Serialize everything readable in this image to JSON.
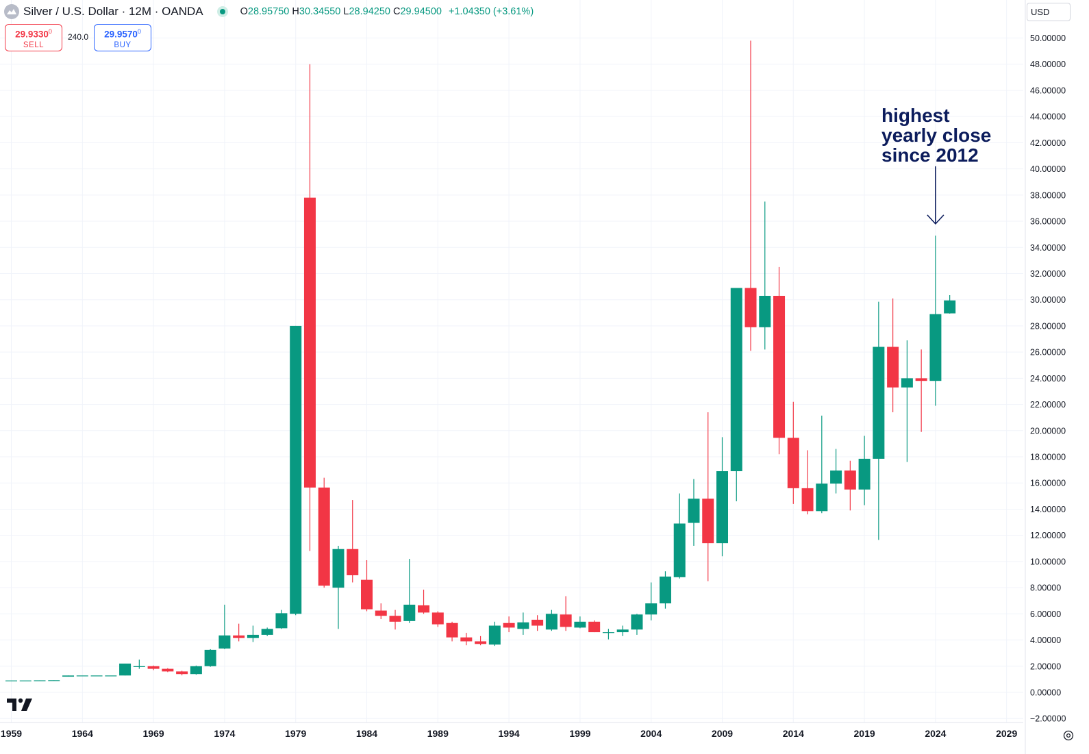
{
  "header": {
    "title": "Silver / U.S. Dollar · 12M · OANDA",
    "ohlc": {
      "open_label": "O",
      "open": "28.95750",
      "high_label": "H",
      "high": "30.34550",
      "low_label": "L",
      "low": "28.94250",
      "close_label": "C",
      "close": "29.94500",
      "change": "+1.04350 (+3.61%)"
    },
    "status_color": "#089981"
  },
  "trade": {
    "sell_price": "29.9330",
    "sell_price_sup": "0",
    "sell_label": "SELL",
    "spread": "240.0",
    "buy_price": "29.9570",
    "buy_price_sup": "0",
    "buy_label": "BUY"
  },
  "currency": "USD",
  "annotation": {
    "lines": [
      "highest",
      "yearly close",
      "since 2012"
    ],
    "color": "#0c1c5c"
  },
  "icons": {
    "logo": "tradingview-logo-icon",
    "settings": "settings-icon",
    "symbol": "silver-symbol-icon",
    "dropdown": "chevron-down-icon"
  },
  "chart_data": {
    "type": "candlestick",
    "colors": {
      "up": "#089981",
      "down": "#f23645",
      "grid": "#f0f3fa",
      "arrow": "#0c1c5c"
    },
    "x_ticks": [
      "1959",
      "1964",
      "1969",
      "1974",
      "1979",
      "1984",
      "1989",
      "1994",
      "1999",
      "2004",
      "2009",
      "2014",
      "2019",
      "2024",
      "2029"
    ],
    "y_ticks": [
      "50.00000",
      "48.00000",
      "46.00000",
      "44.00000",
      "42.00000",
      "40.00000",
      "38.00000",
      "36.00000",
      "34.00000",
      "32.00000",
      "30.00000",
      "28.00000",
      "26.00000",
      "24.00000",
      "22.00000",
      "20.00000",
      "18.00000",
      "16.00000",
      "14.00000",
      "12.00000",
      "10.00000",
      "8.00000",
      "6.00000",
      "4.00000",
      "2.00000",
      "0.00000",
      "−2.00000"
    ],
    "y_range": [
      -2,
      50
    ],
    "x_range": [
      1959,
      2029
    ],
    "grid": true,
    "annotation_arrow": {
      "x": 2024,
      "from": 40.2,
      "to": 35.8
    },
    "candles": [
      {
        "year": 1959,
        "o": 0.91,
        "h": 0.91,
        "l": 0.91,
        "c": 0.91
      },
      {
        "year": 1960,
        "o": 0.91,
        "h": 0.91,
        "l": 0.91,
        "c": 0.91
      },
      {
        "year": 1961,
        "o": 0.91,
        "h": 0.92,
        "l": 0.91,
        "c": 0.92
      },
      {
        "year": 1962,
        "o": 0.92,
        "h": 0.93,
        "l": 0.92,
        "c": 0.93
      },
      {
        "year": 1963,
        "o": 1.2,
        "h": 1.29,
        "l": 1.2,
        "c": 1.29
      },
      {
        "year": 1964,
        "o": 1.29,
        "h": 1.29,
        "l": 1.29,
        "c": 1.29
      },
      {
        "year": 1965,
        "o": 1.29,
        "h": 1.29,
        "l": 1.29,
        "c": 1.29
      },
      {
        "year": 1966,
        "o": 1.29,
        "h": 1.29,
        "l": 1.29,
        "c": 1.29
      },
      {
        "year": 1967,
        "o": 1.29,
        "h": 2.2,
        "l": 1.29,
        "c": 2.2
      },
      {
        "year": 1968,
        "o": 2.0,
        "h": 2.5,
        "l": 1.8,
        "c": 2.0
      },
      {
        "year": 1969,
        "o": 2.0,
        "h": 2.05,
        "l": 1.7,
        "c": 1.8
      },
      {
        "year": 1970,
        "o": 1.8,
        "h": 1.85,
        "l": 1.55,
        "c": 1.6
      },
      {
        "year": 1971,
        "o": 1.6,
        "h": 1.65,
        "l": 1.3,
        "c": 1.4
      },
      {
        "year": 1972,
        "o": 1.4,
        "h": 2.05,
        "l": 1.35,
        "c": 2.0
      },
      {
        "year": 1973,
        "o": 2.0,
        "h": 3.3,
        "l": 1.95,
        "c": 3.25
      },
      {
        "year": 1974,
        "o": 3.35,
        "h": 6.7,
        "l": 3.3,
        "c": 4.35
      },
      {
        "year": 1975,
        "o": 4.35,
        "h": 5.25,
        "l": 3.9,
        "c": 4.15
      },
      {
        "year": 1976,
        "o": 4.15,
        "h": 5.1,
        "l": 3.85,
        "c": 4.4
      },
      {
        "year": 1977,
        "o": 4.4,
        "h": 4.95,
        "l": 4.3,
        "c": 4.85
      },
      {
        "year": 1978,
        "o": 4.9,
        "h": 6.3,
        "l": 4.85,
        "c": 6.05
      },
      {
        "year": 1979,
        "o": 6.0,
        "h": 28.0,
        "l": 5.9,
        "c": 28.0
      },
      {
        "year": 1980,
        "o": 37.8,
        "h": 48.0,
        "l": 10.8,
        "c": 15.65
      },
      {
        "year": 1981,
        "o": 15.65,
        "h": 16.4,
        "l": 8.0,
        "c": 8.15
      },
      {
        "year": 1982,
        "o": 8.0,
        "h": 11.2,
        "l": 4.85,
        "c": 10.95
      },
      {
        "year": 1983,
        "o": 10.95,
        "h": 14.7,
        "l": 8.4,
        "c": 8.95
      },
      {
        "year": 1984,
        "o": 8.6,
        "h": 10.1,
        "l": 6.2,
        "c": 6.35
      },
      {
        "year": 1985,
        "o": 6.25,
        "h": 6.8,
        "l": 5.6,
        "c": 5.85
      },
      {
        "year": 1986,
        "o": 5.85,
        "h": 6.3,
        "l": 4.8,
        "c": 5.4
      },
      {
        "year": 1987,
        "o": 5.45,
        "h": 10.2,
        "l": 5.3,
        "c": 6.7
      },
      {
        "year": 1988,
        "o": 6.65,
        "h": 7.85,
        "l": 6.0,
        "c": 6.1
      },
      {
        "year": 1989,
        "o": 6.1,
        "h": 6.2,
        "l": 5.0,
        "c": 5.2
      },
      {
        "year": 1990,
        "o": 5.3,
        "h": 5.4,
        "l": 3.9,
        "c": 4.2
      },
      {
        "year": 1991,
        "o": 4.2,
        "h": 4.55,
        "l": 3.6,
        "c": 3.9
      },
      {
        "year": 1992,
        "o": 3.9,
        "h": 4.3,
        "l": 3.6,
        "c": 3.7
      },
      {
        "year": 1993,
        "o": 3.65,
        "h": 5.4,
        "l": 3.55,
        "c": 5.1
      },
      {
        "year": 1994,
        "o": 5.3,
        "h": 5.8,
        "l": 4.6,
        "c": 4.95
      },
      {
        "year": 1995,
        "o": 4.85,
        "h": 6.1,
        "l": 4.4,
        "c": 5.35
      },
      {
        "year": 1996,
        "o": 5.55,
        "h": 5.9,
        "l": 4.7,
        "c": 5.1
      },
      {
        "year": 1997,
        "o": 4.8,
        "h": 6.3,
        "l": 4.7,
        "c": 6.0
      },
      {
        "year": 1998,
        "o": 5.95,
        "h": 7.35,
        "l": 4.7,
        "c": 5.0
      },
      {
        "year": 1999,
        "o": 4.95,
        "h": 5.8,
        "l": 4.9,
        "c": 5.4
      },
      {
        "year": 2000,
        "o": 5.4,
        "h": 5.5,
        "l": 4.6,
        "c": 4.6
      },
      {
        "year": 2001,
        "o": 4.6,
        "h": 4.85,
        "l": 4.05,
        "c": 4.6
      },
      {
        "year": 2002,
        "o": 4.6,
        "h": 5.1,
        "l": 4.3,
        "c": 4.8
      },
      {
        "year": 2003,
        "o": 4.8,
        "h": 6.0,
        "l": 4.4,
        "c": 5.95
      },
      {
        "year": 2004,
        "o": 5.95,
        "h": 8.4,
        "l": 5.5,
        "c": 6.8
      },
      {
        "year": 2005,
        "o": 6.8,
        "h": 9.25,
        "l": 6.4,
        "c": 8.85
      },
      {
        "year": 2006,
        "o": 8.8,
        "h": 15.2,
        "l": 8.7,
        "c": 12.9
      },
      {
        "year": 2007,
        "o": 12.95,
        "h": 16.3,
        "l": 11.2,
        "c": 14.8
      },
      {
        "year": 2008,
        "o": 14.8,
        "h": 21.4,
        "l": 8.5,
        "c": 11.4
      },
      {
        "year": 2009,
        "o": 11.4,
        "h": 19.5,
        "l": 10.4,
        "c": 16.9
      },
      {
        "year": 2010,
        "o": 16.9,
        "h": 30.9,
        "l": 14.6,
        "c": 30.9
      },
      {
        "year": 2011,
        "o": 30.9,
        "h": 49.8,
        "l": 26.1,
        "c": 27.9
      },
      {
        "year": 2012,
        "o": 27.9,
        "h": 37.5,
        "l": 26.2,
        "c": 30.3
      },
      {
        "year": 2013,
        "o": 30.3,
        "h": 32.5,
        "l": 18.2,
        "c": 19.45
      },
      {
        "year": 2014,
        "o": 19.45,
        "h": 22.2,
        "l": 14.4,
        "c": 15.6
      },
      {
        "year": 2015,
        "o": 15.6,
        "h": 18.5,
        "l": 13.6,
        "c": 13.85
      },
      {
        "year": 2016,
        "o": 13.85,
        "h": 21.15,
        "l": 13.7,
        "c": 15.95
      },
      {
        "year": 2017,
        "o": 15.95,
        "h": 18.6,
        "l": 15.2,
        "c": 16.95
      },
      {
        "year": 2018,
        "o": 16.95,
        "h": 17.7,
        "l": 13.9,
        "c": 15.5
      },
      {
        "year": 2019,
        "o": 15.5,
        "h": 19.6,
        "l": 14.3,
        "c": 17.85
      },
      {
        "year": 2020,
        "o": 17.85,
        "h": 29.85,
        "l": 11.65,
        "c": 26.4
      },
      {
        "year": 2021,
        "o": 26.4,
        "h": 30.1,
        "l": 21.4,
        "c": 23.3
      },
      {
        "year": 2022,
        "o": 23.3,
        "h": 26.9,
        "l": 17.6,
        "c": 24.0
      },
      {
        "year": 2023,
        "o": 24.0,
        "h": 26.2,
        "l": 19.9,
        "c": 23.8
      },
      {
        "year": 2024,
        "o": 23.8,
        "h": 34.9,
        "l": 21.9,
        "c": 28.9
      },
      {
        "year": 2025,
        "o": 28.96,
        "h": 30.35,
        "l": 28.94,
        "c": 29.95
      }
    ]
  }
}
